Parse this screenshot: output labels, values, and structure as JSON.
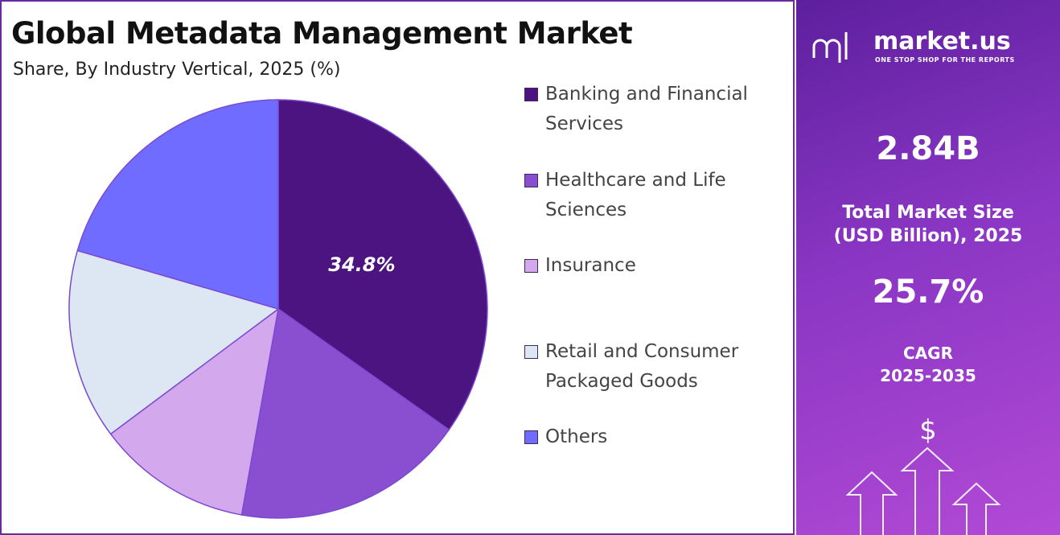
{
  "chart_data": {
    "type": "pie",
    "title": "Global Metadata Management Market",
    "subtitle": "Share, By Industry Vertical, 2025 (%)",
    "categories": [
      "Banking and Financial Services",
      "Healthcare and Life Sciences",
      "Insurance",
      "Retail and Consumer Packaged Goods",
      "Others"
    ],
    "values": [
      34.8,
      18.0,
      12.0,
      14.7,
      20.5
    ],
    "value_labels": [
      "34.8%",
      null,
      null,
      null,
      null
    ],
    "colors": [
      "#4b1480",
      "#8a4fd0",
      "#d4a8ec",
      "#dde6f3",
      "#6f6cff"
    ],
    "legend": "right"
  },
  "sidebar": {
    "brand": "market.us",
    "tagline": "ONE STOP SHOP FOR THE REPORTS",
    "market_size": "2.84B",
    "market_size_label": [
      "Total Market Size",
      "(USD Billion), 2025"
    ],
    "cagr": "25.7%",
    "cagr_label": [
      "CAGR",
      "2025-2035"
    ],
    "icon": "$"
  }
}
